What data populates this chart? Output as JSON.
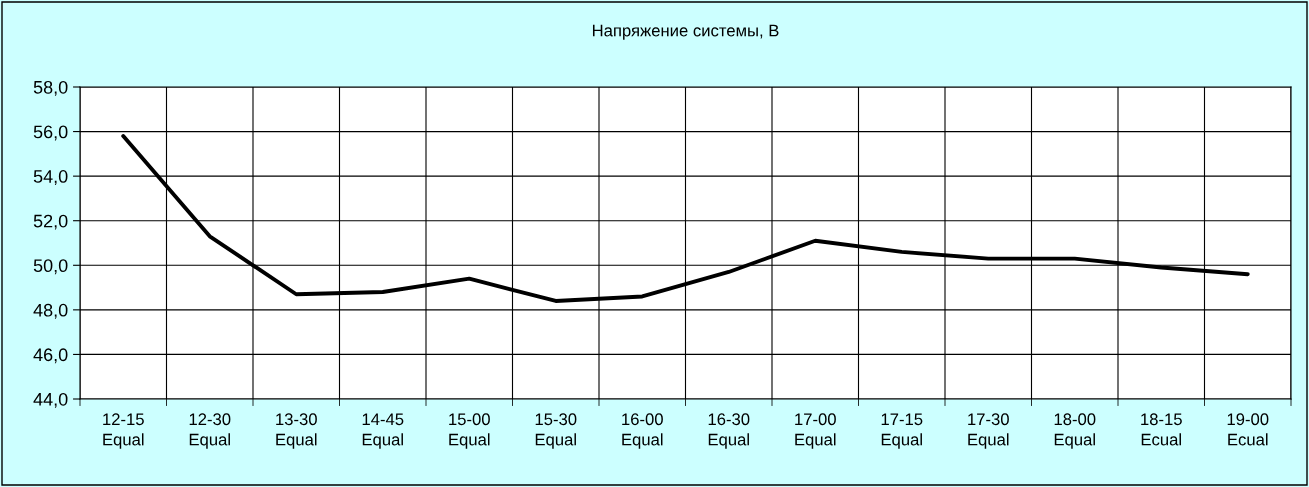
{
  "chart_data": {
    "type": "line",
    "title": "Напряжение системы, В",
    "categories": [
      "12-15\nEqual",
      "12-30\nEqual",
      "13-30\nEqual",
      "14-45\nEqual",
      "15-00\nEqual",
      "15-30\nEqual",
      "16-00\nEqual",
      "16-30\nEqual",
      "17-00\nEqual",
      "17-15\nEqual",
      "17-30\nEqual",
      "18-00\nEqual",
      "18-15\nEcual",
      "19-00\nEcual"
    ],
    "series": [
      {
        "color": "#000000",
        "values": [
          55.8,
          51.3,
          48.7,
          48.8,
          49.4,
          48.4,
          48.6,
          49.7,
          51.1,
          50.6,
          50.3,
          50.3,
          49.9,
          49.6
        ]
      }
    ],
    "ylim": [
      44,
      58
    ],
    "yticks": [
      {
        "value": 44,
        "label": "44,0"
      },
      {
        "value": 46,
        "label": "46,0"
      },
      {
        "value": 48,
        "label": "48,0"
      },
      {
        "value": 50,
        "label": "50,0"
      },
      {
        "value": 52,
        "label": "52,0"
      },
      {
        "value": 54,
        "label": "54,0"
      },
      {
        "value": 56,
        "label": "56,0"
      },
      {
        "value": 58,
        "label": "58,0"
      }
    ],
    "grid": true,
    "marker": "none",
    "line_style": "solid"
  }
}
